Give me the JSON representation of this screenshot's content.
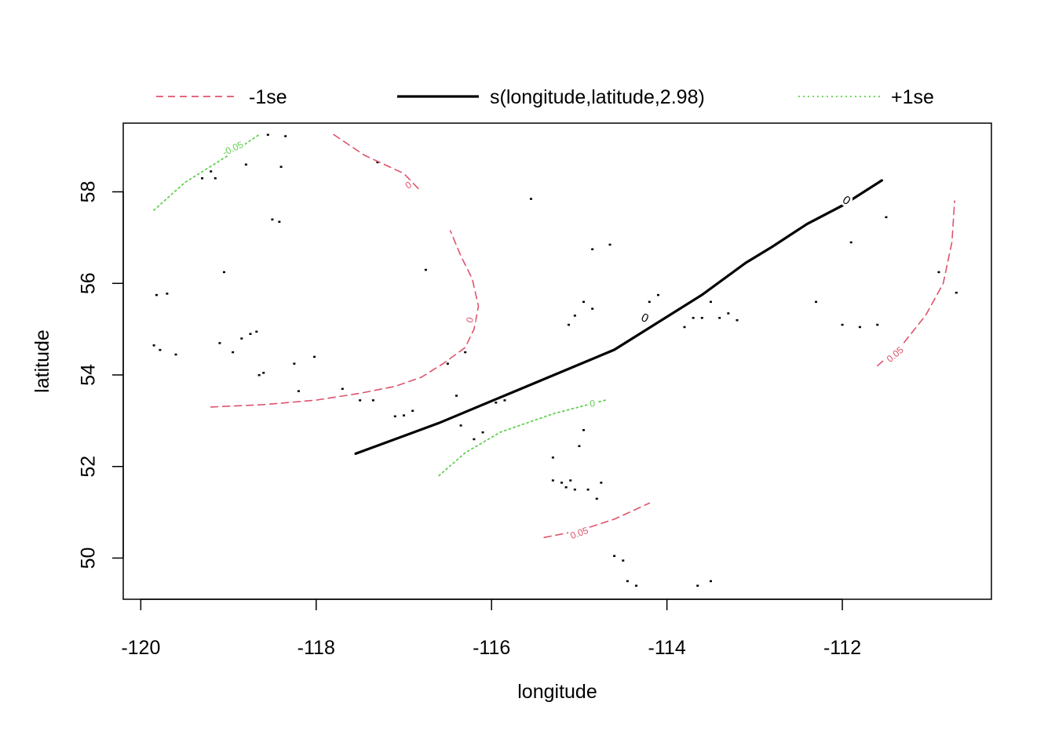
{
  "chart_data": {
    "type": "contour",
    "title": "",
    "xlabel": "longitude",
    "ylabel": "latitude",
    "xlim": [
      -120.2,
      -110.3
    ],
    "ylim": [
      49.1,
      59.5
    ],
    "xticks": [
      -120,
      -118,
      -116,
      -114,
      -112
    ],
    "yticks": [
      50,
      52,
      54,
      56,
      58
    ],
    "xtick_labels": [
      "-120",
      "-118",
      "-116",
      "-114",
      "-112"
    ],
    "ytick_labels": [
      "50",
      "52",
      "54",
      "56",
      "58"
    ],
    "colors": {
      "minus": "#df536b",
      "fit": "#000000",
      "plus": "#61d04f"
    },
    "legend": {
      "placement": "top",
      "entries": [
        {
          "label": "-1se",
          "style": "dashed",
          "color": "#df536b"
        },
        {
          "label": "s(longitude,latitude,2.98)",
          "style": "solid",
          "color": "#000000"
        },
        {
          "label": "+1se",
          "style": "dotted",
          "color": "#61d04f"
        }
      ]
    },
    "contours": [
      {
        "series": "fit",
        "level": "0",
        "label": "0",
        "points": [
          [
            -117.55,
            52.28
          ],
          [
            -116.6,
            52.95
          ],
          [
            -115.6,
            53.75
          ],
          [
            -114.6,
            54.55
          ],
          [
            -113.6,
            55.75
          ],
          [
            -113.1,
            56.45
          ],
          [
            -112.8,
            56.8
          ],
          [
            -112.4,
            57.3
          ],
          [
            -112.0,
            57.7
          ],
          [
            -111.55,
            58.25
          ]
        ],
        "label_pos": [
          [
            -114.25,
            55.25,
            25
          ],
          [
            -111.95,
            57.82,
            35
          ]
        ]
      },
      {
        "series": "minus",
        "level": "0",
        "label": "0",
        "points": [
          [
            -119.2,
            53.3
          ],
          [
            -118.6,
            53.35
          ],
          [
            -118.0,
            53.45
          ],
          [
            -117.5,
            53.6
          ],
          [
            -117.1,
            53.75
          ],
          [
            -116.8,
            53.95
          ],
          [
            -116.55,
            54.25
          ],
          [
            -116.3,
            54.6
          ],
          [
            -116.2,
            55.0
          ],
          [
            -116.15,
            55.5
          ],
          [
            -116.22,
            56.1
          ],
          [
            -116.35,
            56.6
          ],
          [
            -116.47,
            57.15
          ]
        ],
        "label_pos": [
          [
            -116.25,
            55.2,
            -70
          ]
        ]
      },
      {
        "series": "minus",
        "level": "0",
        "label": "0",
        "points": [
          [
            -117.8,
            59.25
          ],
          [
            -117.45,
            58.8
          ],
          [
            -117.0,
            58.4
          ],
          [
            -116.8,
            58.0
          ]
        ],
        "label_pos": [
          [
            -116.95,
            58.15,
            -35
          ]
        ]
      },
      {
        "series": "minus",
        "level": "0.05",
        "label": "0.05",
        "points": [
          [
            -115.4,
            50.45
          ],
          [
            -115.0,
            50.6
          ],
          [
            -114.6,
            50.85
          ],
          [
            -114.2,
            51.2
          ]
        ],
        "label_pos": [
          [
            -115.0,
            50.55,
            -20
          ]
        ]
      },
      {
        "series": "minus",
        "level": "0.05",
        "label": "0.05",
        "points": [
          [
            -111.6,
            54.2
          ],
          [
            -111.3,
            54.7
          ],
          [
            -111.05,
            55.3
          ],
          [
            -110.85,
            56.0
          ],
          [
            -110.75,
            56.9
          ],
          [
            -110.72,
            57.8
          ]
        ],
        "label_pos": [
          [
            -111.4,
            54.45,
            -40
          ]
        ]
      },
      {
        "series": "plus",
        "level": "0",
        "label": "0",
        "points": [
          [
            -116.6,
            51.8
          ],
          [
            -116.3,
            52.3
          ],
          [
            -115.9,
            52.75
          ],
          [
            -115.3,
            53.15
          ],
          [
            -114.7,
            53.45
          ]
        ],
        "label_pos": [
          [
            -114.85,
            53.38,
            -5
          ]
        ]
      },
      {
        "series": "plus",
        "level": "-0.05",
        "label": "-0.05",
        "points": [
          [
            -119.85,
            57.6
          ],
          [
            -119.5,
            58.2
          ],
          [
            -119.0,
            58.8
          ],
          [
            -118.65,
            59.25
          ]
        ],
        "label_pos": [
          [
            -118.95,
            58.95,
            -25
          ]
        ]
      }
    ],
    "points": [
      [
        -119.85,
        54.65
      ],
      [
        -119.78,
        54.55
      ],
      [
        -119.6,
        54.45
      ],
      [
        -119.82,
        55.75
      ],
      [
        -119.7,
        55.78
      ],
      [
        -119.3,
        58.3
      ],
      [
        -119.2,
        58.45
      ],
      [
        -119.15,
        58.3
      ],
      [
        -119.05,
        56.25
      ],
      [
        -119.1,
        54.7
      ],
      [
        -118.95,
        54.5
      ],
      [
        -118.85,
        54.8
      ],
      [
        -118.75,
        54.9
      ],
      [
        -118.68,
        54.95
      ],
      [
        -118.65,
        54.0
      ],
      [
        -118.6,
        54.05
      ],
      [
        -118.8,
        58.6
      ],
      [
        -118.55,
        59.25
      ],
      [
        -118.35,
        59.22
      ],
      [
        -118.4,
        58.55
      ],
      [
        -118.5,
        57.4
      ],
      [
        -118.42,
        57.35
      ],
      [
        -118.25,
        54.25
      ],
      [
        -118.2,
        53.65
      ],
      [
        -118.02,
        54.4
      ],
      [
        -117.7,
        53.7
      ],
      [
        -117.5,
        53.45
      ],
      [
        -117.35,
        53.45
      ],
      [
        -117.3,
        58.65
      ],
      [
        -117.1,
        53.1
      ],
      [
        -117.0,
        53.12
      ],
      [
        -116.9,
        53.22
      ],
      [
        -116.75,
        56.3
      ],
      [
        -116.5,
        54.25
      ],
      [
        -116.3,
        54.5
      ],
      [
        -116.4,
        53.55
      ],
      [
        -116.35,
        52.9
      ],
      [
        -116.2,
        52.6
      ],
      [
        -116.1,
        52.75
      ],
      [
        -115.95,
        53.4
      ],
      [
        -115.85,
        53.45
      ],
      [
        -115.55,
        57.85
      ],
      [
        -115.3,
        52.2
      ],
      [
        -115.3,
        51.7
      ],
      [
        -115.2,
        51.65
      ],
      [
        -115.15,
        51.55
      ],
      [
        -115.1,
        51.7
      ],
      [
        -115.05,
        51.5
      ],
      [
        -115.0,
        52.45
      ],
      [
        -114.95,
        52.8
      ],
      [
        -114.9,
        51.5
      ],
      [
        -114.8,
        51.3
      ],
      [
        -114.75,
        51.65
      ],
      [
        -115.05,
        55.3
      ],
      [
        -114.95,
        55.6
      ],
      [
        -114.85,
        55.45
      ],
      [
        -115.12,
        55.1
      ],
      [
        -114.85,
        56.75
      ],
      [
        -114.65,
        56.85
      ],
      [
        -114.6,
        50.05
      ],
      [
        -114.5,
        49.95
      ],
      [
        -114.45,
        49.5
      ],
      [
        -114.35,
        49.4
      ],
      [
        -114.2,
        55.6
      ],
      [
        -114.1,
        55.75
      ],
      [
        -113.8,
        55.05
      ],
      [
        -113.7,
        55.25
      ],
      [
        -113.6,
        55.25
      ],
      [
        -113.5,
        55.6
      ],
      [
        -113.4,
        55.25
      ],
      [
        -113.3,
        55.35
      ],
      [
        -113.2,
        55.2
      ],
      [
        -113.65,
        49.4
      ],
      [
        -113.5,
        49.5
      ],
      [
        -112.3,
        55.6
      ],
      [
        -112.0,
        55.1
      ],
      [
        -111.9,
        56.9
      ],
      [
        -111.8,
        55.05
      ],
      [
        -111.6,
        55.1
      ],
      [
        -111.5,
        57.45
      ],
      [
        -110.9,
        56.25
      ],
      [
        -110.7,
        55.8
      ]
    ]
  }
}
